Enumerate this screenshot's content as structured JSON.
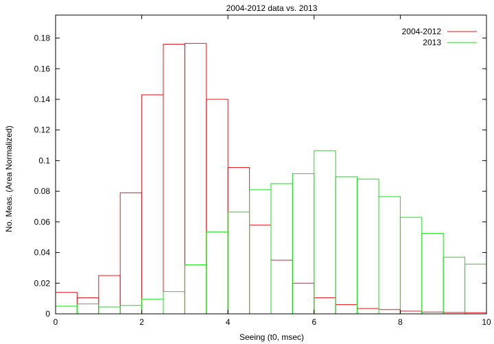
{
  "chart_data": {
    "type": "bar",
    "title": "2004-2012 data vs. 2013",
    "xlabel": "Seeing (t0, msec)",
    "ylabel": "No. Meas. (Area Normalized)",
    "xlim": [
      0,
      10
    ],
    "ylim": [
      0,
      0.195
    ],
    "x_ticks": [
      "0",
      "2",
      "4",
      "6",
      "8",
      "10"
    ],
    "y_ticks": [
      "0",
      "0.02",
      "0.04",
      "0.06",
      "0.08",
      "0.1",
      "0.12",
      "0.14",
      "0.16",
      "0.18"
    ],
    "grid": false,
    "legend_position": "top-right",
    "bin_edges": [
      0,
      0.5,
      1,
      1.5,
      2,
      2.5,
      3,
      3.5,
      4,
      4.5,
      5,
      5.5,
      6,
      6.5,
      7,
      7.5,
      8,
      8.5,
      9,
      9.5,
      10
    ],
    "series": [
      {
        "name": "2004-2012",
        "color": "#e8161b",
        "values": [
          0.014,
          0.0105,
          0.025,
          0.079,
          0.143,
          0.176,
          0.1765,
          0.14,
          0.0955,
          0.058,
          0.035,
          0.02,
          0.0105,
          0.006,
          0.0035,
          0.0028,
          0.0018,
          0.0012,
          0.0009,
          0.0008
        ]
      },
      {
        "name": "2013",
        "color": "#16e016",
        "values": [
          0.005,
          0.0065,
          0.0045,
          0.0055,
          0.0095,
          0.0145,
          0.032,
          0.0535,
          0.0665,
          0.081,
          0.085,
          0.0915,
          0.1065,
          0.0895,
          0.088,
          0.0765,
          0.063,
          0.0525,
          0.037,
          0.0325
        ]
      }
    ]
  }
}
